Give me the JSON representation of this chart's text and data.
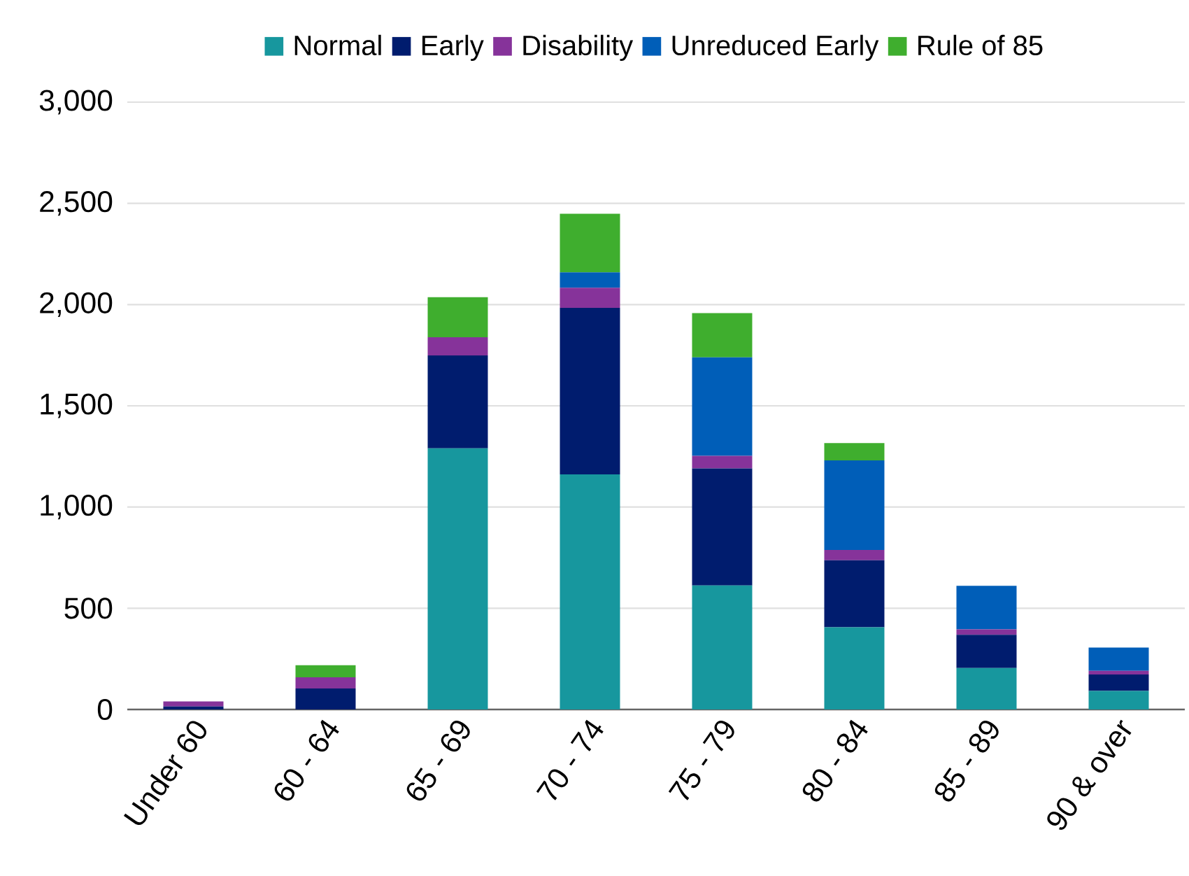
{
  "chart_data": {
    "type": "bar",
    "stacked": true,
    "categories": [
      "Under 60",
      "60 - 64",
      "65 - 69",
      "70 - 74",
      "75 - 79",
      "80 - 84",
      "85 - 89",
      "90 & over"
    ],
    "series": [
      {
        "name": "Normal",
        "color": "#17979e",
        "values": [
          0,
          0,
          1290,
          1161,
          613,
          406,
          205,
          92
        ]
      },
      {
        "name": "Early",
        "color": "#001c6e",
        "values": [
          15,
          104,
          459,
          823,
          578,
          331,
          164,
          81
        ]
      },
      {
        "name": "Disability",
        "color": "#86339a",
        "values": [
          25,
          55,
          90,
          99,
          62,
          51,
          27,
          18
        ]
      },
      {
        "name": "Unreduced Early",
        "color": "#005eb8",
        "values": [
          0,
          0,
          0,
          76,
          486,
          442,
          215,
          115
        ]
      },
      {
        "name": "Rule of 85",
        "color": "#3fae2e",
        "values": [
          0,
          60,
          198,
          290,
          219,
          86,
          0,
          0
        ]
      }
    ],
    "ylim": [
      0,
      3000
    ],
    "yticks": [
      0,
      500,
      {
        "value": 1000,
        "label": "1,000"
      },
      {
        "value": 1500,
        "label": "1,500"
      },
      {
        "value": 2000,
        "label": "2,000"
      },
      {
        "value": 2500,
        "label": "2,500"
      },
      {
        "value": 3000,
        "label": "3,000"
      }
    ],
    "grid": "y",
    "legend": "top"
  }
}
